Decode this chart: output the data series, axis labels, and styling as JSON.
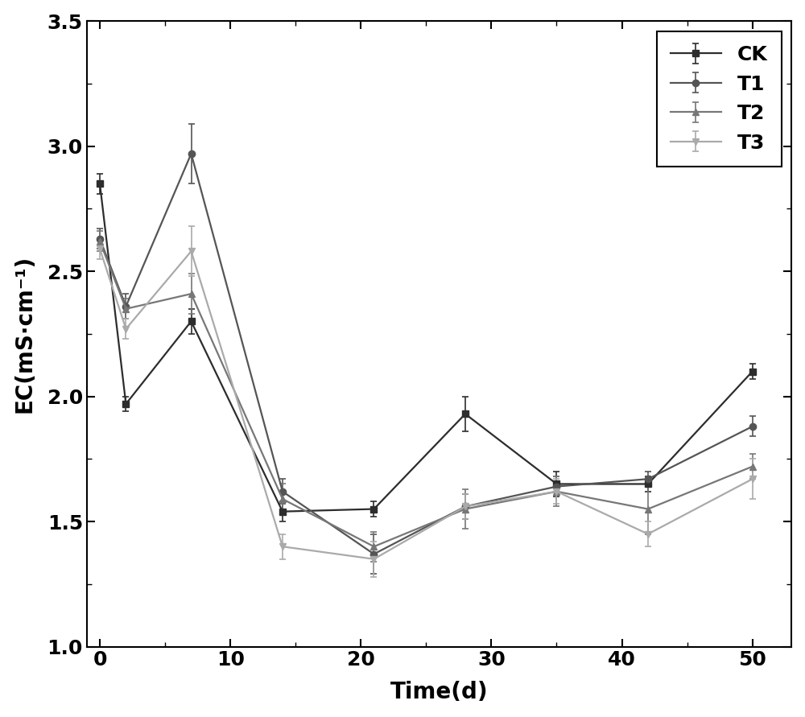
{
  "x": [
    0,
    2,
    7,
    14,
    21,
    28,
    35,
    42,
    50
  ],
  "CK": {
    "y": [
      2.85,
      1.97,
      2.3,
      1.54,
      1.55,
      1.93,
      1.65,
      1.65,
      2.1
    ],
    "yerr": [
      0.04,
      0.03,
      0.05,
      0.04,
      0.03,
      0.07,
      0.05,
      0.03,
      0.03
    ],
    "color": "#2d2d2d",
    "marker": "s",
    "linewidth": 1.6,
    "markersize": 6
  },
  "T1": {
    "y": [
      2.63,
      2.36,
      2.97,
      1.62,
      1.37,
      1.56,
      1.64,
      1.67,
      1.88
    ],
    "yerr": [
      0.04,
      0.05,
      0.12,
      0.05,
      0.08,
      0.05,
      0.04,
      0.03,
      0.04
    ],
    "color": "#555555",
    "marker": "o",
    "linewidth": 1.6,
    "markersize": 6
  },
  "T2": {
    "y": [
      2.62,
      2.35,
      2.41,
      1.59,
      1.4,
      1.55,
      1.62,
      1.55,
      1.72
    ],
    "yerr": [
      0.04,
      0.04,
      0.08,
      0.06,
      0.06,
      0.08,
      0.06,
      0.1,
      0.05
    ],
    "color": "#777777",
    "marker": "^",
    "linewidth": 1.6,
    "markersize": 6
  },
  "T3": {
    "y": [
      2.59,
      2.27,
      2.58,
      1.4,
      1.35,
      1.56,
      1.62,
      1.45,
      1.67
    ],
    "yerr": [
      0.04,
      0.04,
      0.1,
      0.05,
      0.07,
      0.05,
      0.05,
      0.05,
      0.08
    ],
    "color": "#aaaaaa",
    "marker": "v",
    "linewidth": 1.6,
    "markersize": 6
  },
  "xlabel": "Time(d)",
  "ylabel": "EC(mS·cm⁻¹)",
  "xlim": [
    -1,
    53
  ],
  "ylim": [
    1.0,
    3.5
  ],
  "yticks": [
    1.0,
    1.5,
    2.0,
    2.5,
    3.0,
    3.5
  ],
  "xticks": [
    0,
    10,
    20,
    30,
    40,
    50
  ],
  "xlabel_fontsize": 20,
  "ylabel_fontsize": 20,
  "tick_fontsize": 18,
  "legend_fontsize": 18,
  "background_color": "#ffffff"
}
